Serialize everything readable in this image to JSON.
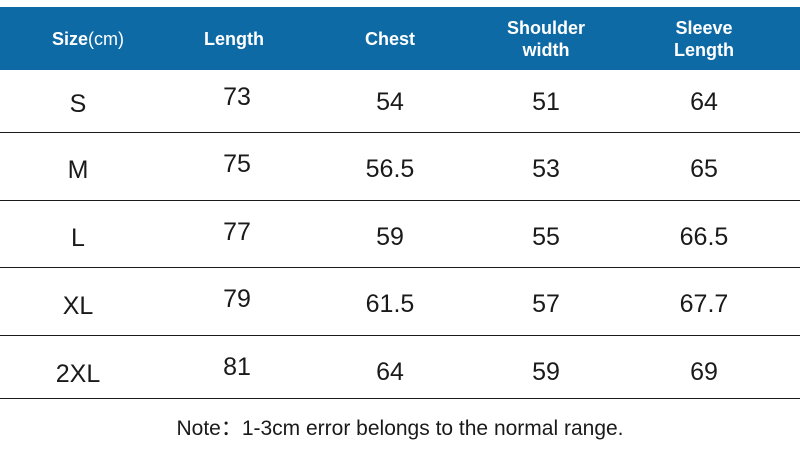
{
  "table": {
    "headers": {
      "size": "Size",
      "size_unit": "(cm)",
      "length": "Length",
      "chest": "Chest",
      "shoulder_line1": "Shoulder",
      "shoulder_line2": "width",
      "sleeve_line1": "Sleeve",
      "sleeve_line2": "Length"
    },
    "rows": [
      {
        "size": "S",
        "length": "73",
        "chest": "54",
        "shoulder": "51",
        "sleeve": "64"
      },
      {
        "size": "M",
        "length": "75",
        "chest": "56.5",
        "shoulder": "53",
        "sleeve": "65"
      },
      {
        "size": "L",
        "length": "77",
        "chest": "59",
        "shoulder": "55",
        "sleeve": "66.5"
      },
      {
        "size": "XL",
        "length": "79",
        "chest": "61.5",
        "shoulder": "57",
        "sleeve": "67.7"
      },
      {
        "size": "2XL",
        "length": "81",
        "chest": "64",
        "shoulder": "59",
        "sleeve": "69"
      }
    ]
  },
  "note": "Note：1-3cm error belongs to the normal range.",
  "colors": {
    "header_background": "#0e6aa5",
    "header_text": "#ffffff",
    "body_text": "#1a1a1a",
    "row_rule": "#1a1a1a"
  }
}
